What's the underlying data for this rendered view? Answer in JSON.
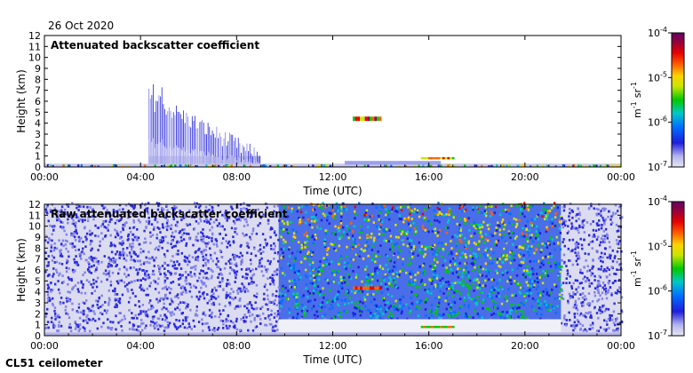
{
  "date": "26 Oct 2020",
  "instrument": "CL51 ceilometer",
  "chart_data": [
    {
      "type": "heatmap",
      "title": "Attenuated backscatter coefficient",
      "xlabel": "Time (UTC)",
      "ylabel": "Height (km)",
      "xlim": [
        "00:00",
        "24:00"
      ],
      "ylim": [
        0,
        12
      ],
      "x_ticks": [
        "00:00",
        "04:00",
        "08:00",
        "12:00",
        "16:00",
        "20:00",
        "00:00"
      ],
      "y_ticks": [
        0,
        1,
        2,
        3,
        4,
        5,
        6,
        7,
        8,
        9,
        10,
        11,
        12
      ],
      "colorbar": {
        "scale": "log",
        "range": [
          1e-07,
          0.0001
        ],
        "tick_labels": [
          "10",
          "10",
          "10",
          "10"
        ],
        "tick_exponents": [
          "-4",
          "-5",
          "-6",
          "-7"
        ],
        "unit_text": [
          "m",
          "sr"
        ],
        "unit_exponents": [
          "-1",
          "-1"
        ],
        "colors": [
          "#e6e6f2",
          "#1e1edc",
          "#0070ff",
          "#00c8c8",
          "#00c800",
          "#c8e600",
          "#ffd200",
          "#ff6400",
          "#e60000",
          "#96003c",
          "#640064"
        ]
      },
      "features": [
        {
          "name": "near-surface layer",
          "time": [
            "00:00",
            "24:00"
          ],
          "height_km": [
            0,
            0.3
          ]
        },
        {
          "name": "aerosol / precipitation streaks",
          "time": [
            "04:20",
            "09:00"
          ],
          "height_km": [
            0.3,
            7.7
          ]
        },
        {
          "name": "cloud layer",
          "time": [
            "12:50",
            "14:00"
          ],
          "height_km": [
            4.2,
            4.6
          ]
        },
        {
          "name": "low cloud",
          "time": [
            "15:40",
            "17:00"
          ],
          "height_km": [
            0.7,
            0.9
          ]
        }
      ]
    },
    {
      "type": "heatmap",
      "title": "Raw attenuated backscatter coefficient",
      "xlabel": "Time (UTC)",
      "ylabel": "Height (km)",
      "xlim": [
        "00:00",
        "24:00"
      ],
      "ylim": [
        0,
        12
      ],
      "x_ticks": [
        "00:00",
        "04:00",
        "08:00",
        "12:00",
        "16:00",
        "20:00",
        "00:00"
      ],
      "y_ticks": [
        0,
        1,
        2,
        3,
        4,
        5,
        6,
        7,
        8,
        9,
        10,
        11,
        12
      ],
      "colorbar": {
        "scale": "log",
        "range": [
          1e-07,
          0.0001
        ],
        "tick_labels": [
          "10",
          "10",
          "10",
          "10"
        ],
        "tick_exponents": [
          "-4",
          "-5",
          "-6",
          "-7"
        ],
        "unit_text": [
          "m",
          "sr"
        ],
        "unit_exponents": [
          "-1",
          "-1"
        ],
        "colors": [
          "#e6e6f2",
          "#1e1edc",
          "#0070ff",
          "#00c8c8",
          "#00c800",
          "#c8e600",
          "#ffd200",
          "#ff6400",
          "#e60000",
          "#96003c",
          "#640064"
        ]
      },
      "features": [
        {
          "name": "background noise",
          "time": [
            "00:00",
            "24:00"
          ],
          "height_km": [
            0.3,
            12
          ]
        },
        {
          "name": "high noise (daylight)",
          "time": [
            "09:45",
            "21:30"
          ],
          "height_km": [
            1.5,
            12
          ]
        },
        {
          "name": "cloud layer",
          "time": [
            "12:50",
            "14:00"
          ],
          "height_km": [
            4.2,
            4.5
          ]
        },
        {
          "name": "low cloud",
          "time": [
            "15:40",
            "17:00"
          ],
          "height_km": [
            0.7,
            0.9
          ]
        }
      ]
    }
  ]
}
